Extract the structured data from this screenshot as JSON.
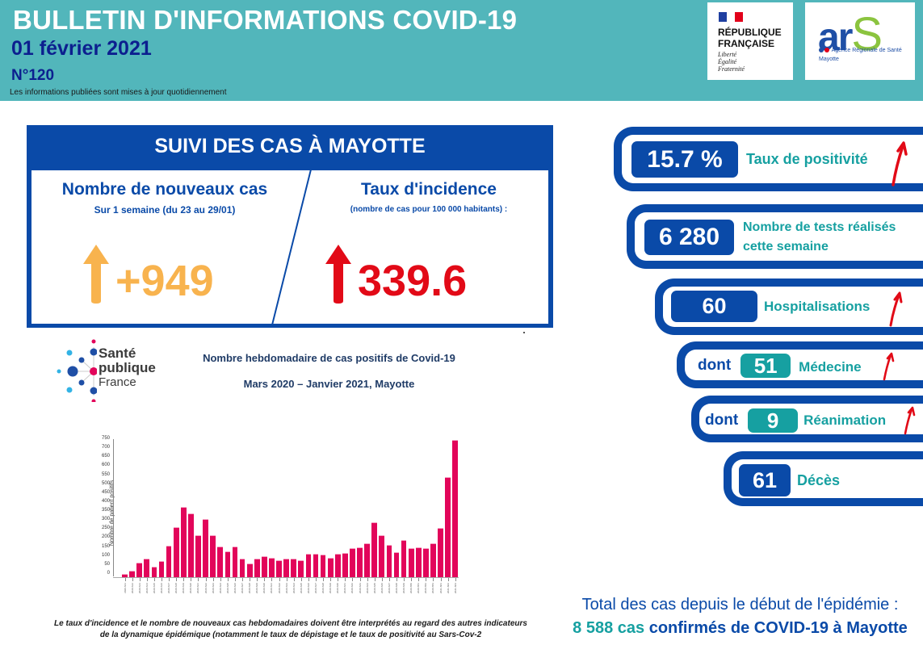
{
  "header": {
    "title": "BULLETIN D'INFORMATIONS COVID-19",
    "date": "01 février 2021",
    "number": "N°120",
    "note": "Les informations publiées sont mises à jour quotidiennement",
    "background_color": "#52b6bb"
  },
  "logos": {
    "republique": {
      "line1": "RÉPUBLIQUE",
      "line2": "FRANÇAISE",
      "motto": [
        "Liberté",
        "Égalité",
        "Fraternité"
      ]
    },
    "ars": {
      "word": "ar",
      "word_s": "S",
      "subtitle": "Agence Régionale de Santé",
      "region": "Mayotte"
    },
    "spf": {
      "line1": "Santé",
      "line2": "publique",
      "line3": "France"
    }
  },
  "cases_panel": {
    "title": "SUIVI DES CAS À MAYOTTE",
    "new_cases": {
      "heading": "Nombre de nouveaux cas",
      "subheading": "Sur 1 semaine (du 23 au 29/01)",
      "value": "+949",
      "trend": "up",
      "color": "#f8b34e"
    },
    "incidence": {
      "heading": "Taux d'incidence",
      "subheading": "(nombre de cas pour 100 000 habitants) :",
      "value": "339.6",
      "trend": "up",
      "color": "#e20a17"
    }
  },
  "indicators": [
    {
      "id": "positivite",
      "value": "15.7 %",
      "label": "Taux de positivité",
      "trend": "up"
    },
    {
      "id": "tests",
      "value": "6 280",
      "label_line1": "Nombre de tests réalisés",
      "label_line2": "cette semaine",
      "trend": "none"
    },
    {
      "id": "hospitalisations",
      "value": "60",
      "label": "Hospitalisations",
      "trend": "up"
    },
    {
      "id": "medecine",
      "prefix": "dont",
      "value": "51",
      "label": "Médecine",
      "trend": "up"
    },
    {
      "id": "reanimation",
      "prefix": "dont",
      "value": "9",
      "label": "Réanimation",
      "trend": "up"
    },
    {
      "id": "deces",
      "value": "61",
      "label": "Décès",
      "trend": "none"
    }
  ],
  "chart_section": {
    "title_line1": "Nombre hebdomadaire de cas positifs de Covid-19",
    "title_line2": "Mars 2020 – Janvier 2021, Mayotte",
    "footnote_line1": "Le taux d'incidence et le nombre de nouveaux cas hebdomadaires doivent être interprétés au regard des autres indicateurs",
    "footnote_line2": "de la dynamique épidémique (notamment le taux de dépistage et le taux de positivité au Sars-Cov-2"
  },
  "chart_data": {
    "type": "bar",
    "title": "Nombre hebdomadaire de cas positifs de Covid-19 — Mars 2020 – Janvier 2021, Mayotte",
    "xlabel": "",
    "ylabel": "Nombre de patient positifs",
    "ylim": [
      0,
      750
    ],
    "yticks": [
      0,
      50,
      100,
      150,
      200,
      250,
      300,
      350,
      400,
      450,
      500,
      550,
      600,
      650,
      700,
      750
    ],
    "grid": false,
    "legend": null,
    "bar_color": "#e2055a",
    "categories": [
      "2020-S11",
      "2020-S12",
      "2020-S13",
      "2020-S14",
      "2020-S15",
      "2020-S16",
      "2020-S17",
      "2020-S18",
      "2020-S19",
      "2020-S20",
      "2020-S21",
      "2020-S22",
      "2020-S23",
      "2020-S24",
      "2020-S25",
      "2020-S26",
      "2020-S27",
      "2020-S28",
      "2020-S29",
      "2020-S30",
      "2020-S31",
      "2020-S32",
      "2020-S33",
      "2020-S34",
      "2020-S35",
      "2020-S36",
      "2020-S37",
      "2020-S38",
      "2020-S39",
      "2020-S40",
      "2020-S41",
      "2020-S42",
      "2020-S43",
      "2020-S44",
      "2020-S45",
      "2020-S46",
      "2020-S47",
      "2020-S48",
      "2020-S49",
      "2020-S50",
      "2020-S51",
      "2020-S52",
      "2020-S53",
      "2021-S01",
      "2021-S02",
      "2021-S03"
    ],
    "values": [
      20,
      38,
      83,
      103,
      60,
      90,
      177,
      280,
      390,
      355,
      235,
      322,
      235,
      172,
      143,
      172,
      103,
      78,
      103,
      118,
      108,
      95,
      103,
      105,
      95,
      132,
      130,
      128,
      110,
      130,
      135,
      160,
      168,
      190,
      305,
      235,
      180,
      140,
      205,
      160,
      165,
      162,
      190,
      275,
      555,
      765
    ]
  },
  "total": {
    "line1": "Total des cas depuis le début de l'épidémie :",
    "count": "8 588 cas",
    "rest": " confirmés de COVID-19 à Mayotte"
  }
}
